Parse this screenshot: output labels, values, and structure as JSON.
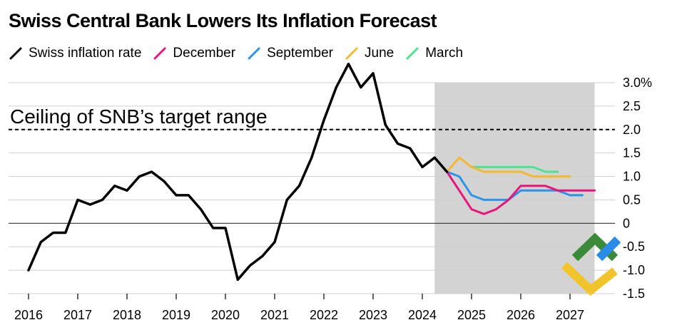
{
  "chart_data": {
    "type": "line",
    "title": "Swiss Central Bank Lowers Its Inflation Forecast",
    "xlabel": "",
    "ylabel": "",
    "x_ticks": [
      "2016",
      "2017",
      "2018",
      "2019",
      "2020",
      "2021",
      "2022",
      "2023",
      "2024",
      "2025",
      "2026",
      "2027"
    ],
    "y_ticks": [
      {
        "value": 3.0,
        "label": "3.0%"
      },
      {
        "value": 2.5,
        "label": "2.5"
      },
      {
        "value": 2.0,
        "label": "2.0"
      },
      {
        "value": 1.5,
        "label": "1.5"
      },
      {
        "value": 1.0,
        "label": "1.0"
      },
      {
        "value": 0.5,
        "label": "0.5"
      },
      {
        "value": 0,
        "label": "0"
      },
      {
        "value": -0.5,
        "label": "-0.5"
      },
      {
        "value": -1.0,
        "label": "-1.0"
      },
      {
        "value": -1.5,
        "label": "-1.5"
      }
    ],
    "ylim": [
      -1.5,
      3.0
    ],
    "xlim": [
      2015.75,
      2027.95
    ],
    "grid": true,
    "legend_position": "top-left",
    "forecast_period": [
      2024.25,
      2027.5
    ],
    "reference_line": {
      "value": 2.0,
      "label": "Ceiling of SNB’s target range"
    },
    "series": [
      {
        "name": "Swiss inflation rate",
        "color": "#000000",
        "points": [
          [
            2016.0,
            -1.0
          ],
          [
            2016.25,
            -0.4
          ],
          [
            2016.5,
            -0.2
          ],
          [
            2016.75,
            -0.2
          ],
          [
            2017.0,
            0.5
          ],
          [
            2017.25,
            0.4
          ],
          [
            2017.5,
            0.5
          ],
          [
            2017.75,
            0.8
          ],
          [
            2018.0,
            0.7
          ],
          [
            2018.25,
            1.0
          ],
          [
            2018.5,
            1.1
          ],
          [
            2018.75,
            0.9
          ],
          [
            2019.0,
            0.6
          ],
          [
            2019.25,
            0.6
          ],
          [
            2019.5,
            0.3
          ],
          [
            2019.75,
            -0.1
          ],
          [
            2020.0,
            -0.1
          ],
          [
            2020.25,
            -1.2
          ],
          [
            2020.5,
            -0.9
          ],
          [
            2020.75,
            -0.7
          ],
          [
            2021.0,
            -0.4
          ],
          [
            2021.25,
            0.5
          ],
          [
            2021.5,
            0.8
          ],
          [
            2021.75,
            1.4
          ],
          [
            2022.0,
            2.2
          ],
          [
            2022.25,
            2.9
          ],
          [
            2022.5,
            3.4
          ],
          [
            2022.75,
            2.9
          ],
          [
            2023.0,
            3.2
          ],
          [
            2023.25,
            2.1
          ],
          [
            2023.5,
            1.7
          ],
          [
            2023.75,
            1.6
          ],
          [
            2024.0,
            1.2
          ],
          [
            2024.25,
            1.4
          ],
          [
            2024.5,
            1.1
          ]
        ]
      },
      {
        "name": "December",
        "color": "#e8157c",
        "points": [
          [
            2024.5,
            1.1
          ],
          [
            2024.75,
            0.7
          ],
          [
            2025.0,
            0.3
          ],
          [
            2025.25,
            0.2
          ],
          [
            2025.5,
            0.3
          ],
          [
            2025.75,
            0.5
          ],
          [
            2026.0,
            0.8
          ],
          [
            2026.25,
            0.8
          ],
          [
            2026.5,
            0.8
          ],
          [
            2026.75,
            0.7
          ],
          [
            2027.0,
            0.7
          ],
          [
            2027.25,
            0.7
          ],
          [
            2027.5,
            0.7
          ]
        ]
      },
      {
        "name": "September",
        "color": "#2b93e8",
        "points": [
          [
            2024.5,
            1.1
          ],
          [
            2024.75,
            1.0
          ],
          [
            2025.0,
            0.6
          ],
          [
            2025.25,
            0.5
          ],
          [
            2025.5,
            0.5
          ],
          [
            2025.75,
            0.5
          ],
          [
            2026.0,
            0.7
          ],
          [
            2026.25,
            0.7
          ],
          [
            2026.5,
            0.7
          ],
          [
            2026.75,
            0.7
          ],
          [
            2027.0,
            0.6
          ],
          [
            2027.25,
            0.6
          ]
        ]
      },
      {
        "name": "June",
        "color": "#f5b82e",
        "points": [
          [
            2024.5,
            1.1
          ],
          [
            2024.75,
            1.4
          ],
          [
            2025.0,
            1.2
          ],
          [
            2025.25,
            1.1
          ],
          [
            2025.5,
            1.1
          ],
          [
            2025.75,
            1.1
          ],
          [
            2026.0,
            1.1
          ],
          [
            2026.25,
            1.0
          ],
          [
            2026.5,
            1.0
          ],
          [
            2026.75,
            1.0
          ],
          [
            2027.0,
            1.0
          ]
        ]
      },
      {
        "name": "March",
        "color": "#4be38f",
        "points": [
          [
            2025.0,
            1.2
          ],
          [
            2025.25,
            1.2
          ],
          [
            2025.5,
            1.2
          ],
          [
            2025.75,
            1.2
          ],
          [
            2026.0,
            1.2
          ],
          [
            2026.25,
            1.2
          ],
          [
            2026.5,
            1.1
          ],
          [
            2026.75,
            1.1
          ]
        ]
      }
    ]
  },
  "watermark": {
    "icon": "brand-logo-icon",
    "colors": [
      "#3a8a3a",
      "#f2c42c",
      "#2b8be8"
    ]
  }
}
